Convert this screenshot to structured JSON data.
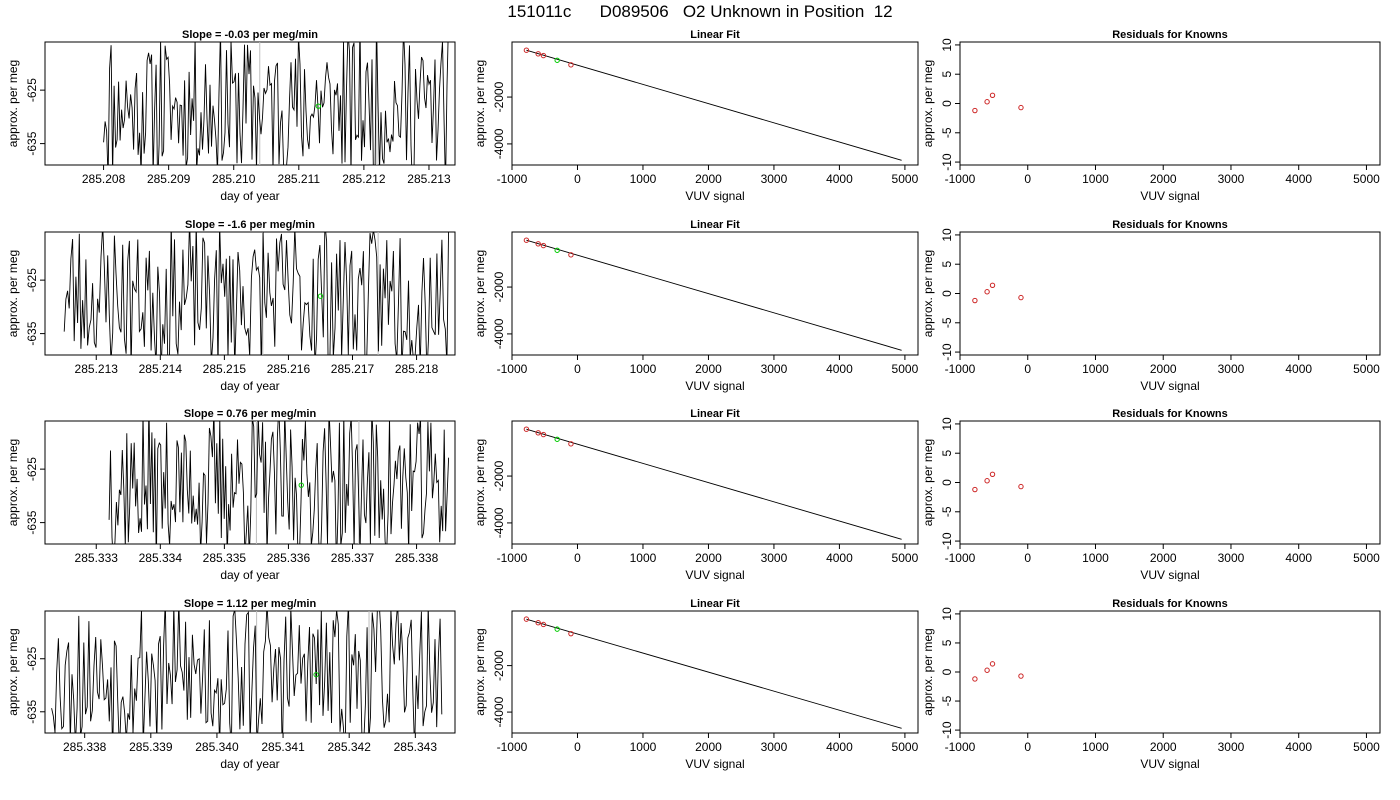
{
  "page_title": "151011c      D089506   O2 Unknown in Position  12",
  "colors": {
    "trace": "#000000",
    "known_point": "#cd2626",
    "unknown_point": "#00cc00",
    "gridline": "#bebebe"
  },
  "chart_data": [
    {
      "type": "line",
      "panel": "row1-slope",
      "title": "Slope =  -0.03  per meg/min",
      "xlabel": "day of year",
      "ylabel": "approx. per meg",
      "xlim": [
        285.2071,
        285.2134
      ],
      "ylim": [
        -639,
        -616
      ],
      "xticks": [
        285.208,
        285.209,
        285.21,
        285.211,
        285.212,
        285.213
      ],
      "xtick_labels": [
        "285.208",
        "285.209",
        "285.210",
        "285.211",
        "285.212",
        "285.213"
      ],
      "yticks": [
        -625,
        -635
      ],
      "ytick_labels": [
        "-625",
        "-635"
      ],
      "trace_x_start": 285.208,
      "trace_x_end": 285.2133,
      "trace_seed": 11,
      "vlines": [
        285.2104,
        285.2122
      ],
      "unknown_marker": {
        "x": 285.2113,
        "y": -628
      }
    },
    {
      "type": "line",
      "panel": "row2-slope",
      "title": "Slope =  -1.6  per meg/min",
      "xlabel": "day of year",
      "ylabel": "approx. per meg",
      "xlim": [
        285.2122,
        285.2186
      ],
      "ylim": [
        -639,
        -616
      ],
      "xticks": [
        285.213,
        285.214,
        285.215,
        285.216,
        285.217,
        285.218
      ],
      "xtick_labels": [
        "285.213",
        "285.214",
        "285.215",
        "285.216",
        "285.217",
        "285.218"
      ],
      "yticks": [
        -625,
        -635
      ],
      "ytick_labels": [
        "-625",
        "-635"
      ],
      "trace_x_start": 285.2125,
      "trace_x_end": 285.2185,
      "trace_seed": 23,
      "vlines": [
        285.2156,
        285.2174
      ],
      "unknown_marker": {
        "x": 285.2165,
        "y": -628
      }
    },
    {
      "type": "line",
      "panel": "row3-slope",
      "title": "Slope =  0.76  per meg/min",
      "xlabel": "day of year",
      "ylabel": "approx. per meg",
      "xlim": [
        285.3322,
        285.3386
      ],
      "ylim": [
        -639,
        -616
      ],
      "xticks": [
        285.333,
        285.334,
        285.335,
        285.336,
        285.337,
        285.338
      ],
      "xtick_labels": [
        "285.333",
        "285.334",
        "285.335",
        "285.336",
        "285.337",
        "285.338"
      ],
      "yticks": [
        -625,
        -635
      ],
      "ytick_labels": [
        "-625",
        "-635"
      ],
      "trace_x_start": 285.3332,
      "trace_x_end": 285.3385,
      "trace_seed": 37,
      "vlines": [
        285.3355,
        285.3371
      ],
      "unknown_marker": {
        "x": 285.3362,
        "y": -628
      }
    },
    {
      "type": "line",
      "panel": "row4-slope",
      "title": "Slope =  1.12  per meg/min",
      "xlabel": "day of year",
      "ylabel": "approx. per meg",
      "xlim": [
        285.3374,
        285.3436
      ],
      "ylim": [
        -639,
        -616
      ],
      "xticks": [
        285.338,
        285.339,
        285.34,
        285.341,
        285.342,
        285.343
      ],
      "xtick_labels": [
        "285.338",
        "285.339",
        "285.340",
        "285.341",
        "285.342",
        "285.343"
      ],
      "yticks": [
        -625,
        -635
      ],
      "ytick_labels": [
        "-625",
        "-635"
      ],
      "trace_x_start": 285.3375,
      "trace_x_end": 285.3434,
      "trace_seed": 53,
      "vlines": [
        285.3406,
        285.3423
      ],
      "unknown_marker": {
        "x": 285.3415,
        "y": -628
      }
    },
    {
      "type": "scatter",
      "panel": "linear-fit",
      "title": "Linear Fit",
      "xlabel": "VUV signal",
      "ylabel": "approx. per meg",
      "xlim": [
        -1000,
        5200
      ],
      "ylim": [
        -4900,
        350
      ],
      "xticks": [
        -1000,
        0,
        1000,
        2000,
        3000,
        4000,
        5000
      ],
      "xtick_labels": [
        "-1000",
        "0",
        "1000",
        "2000",
        "3000",
        "4000",
        "5000"
      ],
      "yticks": [
        -2000,
        -4000
      ],
      "ytick_labels": [
        "-2000",
        "-4000"
      ],
      "knowns": [
        {
          "x": -780,
          "y": 0
        },
        {
          "x": -600,
          "y": -155
        },
        {
          "x": -520,
          "y": -230
        },
        {
          "x": -100,
          "y": -625
        }
      ],
      "unknown": {
        "x": -310,
        "y": -430
      },
      "fit_line": [
        {
          "x": -780,
          "y": 0
        },
        {
          "x": 4950,
          "y": -4700
        }
      ]
    },
    {
      "type": "scatter",
      "panel": "residuals",
      "title": "Residuals for Knowns",
      "xlabel": "VUV signal",
      "ylabel": "approx. per meg",
      "xlim": [
        -1000,
        5200
      ],
      "ylim": [
        -10.5,
        10.5
      ],
      "xticks": [
        -1000,
        0,
        1000,
        2000,
        3000,
        4000,
        5000
      ],
      "xtick_labels": [
        "-1000",
        "0",
        "1000",
        "2000",
        "3000",
        "4000",
        "5000"
      ],
      "yticks": [
        10,
        5,
        0,
        -5,
        -10
      ],
      "ytick_labels": [
        "10",
        "5",
        "0",
        "-5",
        "-10"
      ],
      "points": [
        {
          "x": -780,
          "y": -1.2
        },
        {
          "x": -600,
          "y": 0.3
        },
        {
          "x": -520,
          "y": 1.4
        },
        {
          "x": -100,
          "y": -0.7
        }
      ]
    }
  ]
}
